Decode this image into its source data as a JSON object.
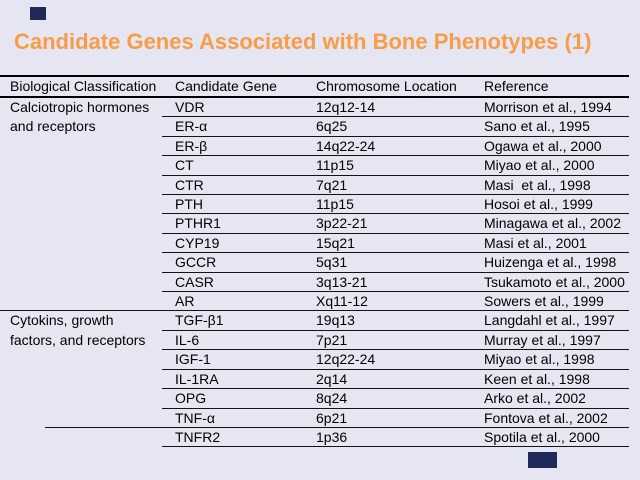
{
  "slide": {
    "title": "Candidate Genes Associated with Bone Phenotypes (1)",
    "title_color": "#F89C47",
    "background_color": "#E6E6F2",
    "accent_square_color": "#1F2A5B"
  },
  "table": {
    "columns": [
      "Biological Classification",
      "Candidate Gene",
      "Chromosome Location",
      "Reference"
    ],
    "groups": [
      {
        "classification_lines": [
          "Calciotropic hormones",
          "and receptors"
        ],
        "rows": [
          {
            "gene": "VDR",
            "location": "12q12-14",
            "reference": "Morrison et al., 1994"
          },
          {
            "gene": "ER-α",
            "location": "6q25",
            "reference": "Sano et al., 1995"
          },
          {
            "gene": "ER-β",
            "location": "14q22-24",
            "reference": "Ogawa et al., 2000"
          },
          {
            "gene": "CT",
            "location": "11p15",
            "reference": "Miyao et al., 2000"
          },
          {
            "gene": "CTR",
            "location": "7q21",
            "reference": "Masi  et al., 1998"
          },
          {
            "gene": "PTH",
            "location": "11p15",
            "reference": "Hosoi et al., 1999"
          },
          {
            "gene": "PTHR1",
            "location": "3p22-21",
            "reference": "Minagawa et al., 2002"
          },
          {
            "gene": "CYP19",
            "location": "15q21",
            "reference": "Masi et al., 2001"
          },
          {
            "gene": "GCCR",
            "location": "5q31",
            "reference": "Huizenga et al., 1998"
          },
          {
            "gene": "CASR",
            "location": "3q13-21",
            "reference": "Tsukamoto et al., 2000"
          },
          {
            "gene": "AR",
            "location": "Xq11-12",
            "reference": "Sowers et al., 1999"
          }
        ]
      },
      {
        "classification_lines": [
          "Cytokins, growth",
          "factors, and receptors"
        ],
        "rows": [
          {
            "gene": "TGF-β1",
            "location": "19q13",
            "reference": "Langdahl et al., 1997"
          },
          {
            "gene": "IL-6",
            "location": "7p21",
            "reference": "Murray et al., 1997"
          },
          {
            "gene": "IGF-1",
            "location": "12q22-24",
            "reference": "Miyao et al., 1998"
          },
          {
            "gene": "IL-1RA",
            "location": "2q14",
            "reference": "Keen et al., 1998"
          },
          {
            "gene": "OPG",
            "location": "8q24",
            "reference": "Arko et al., 2002"
          },
          {
            "gene": "TNF-α",
            "location": "6p21",
            "reference": "Fontova et al., 2002"
          },
          {
            "gene": "TNFR2",
            "location": "1p36",
            "reference": "Spotila et al., 2000"
          }
        ]
      }
    ]
  }
}
